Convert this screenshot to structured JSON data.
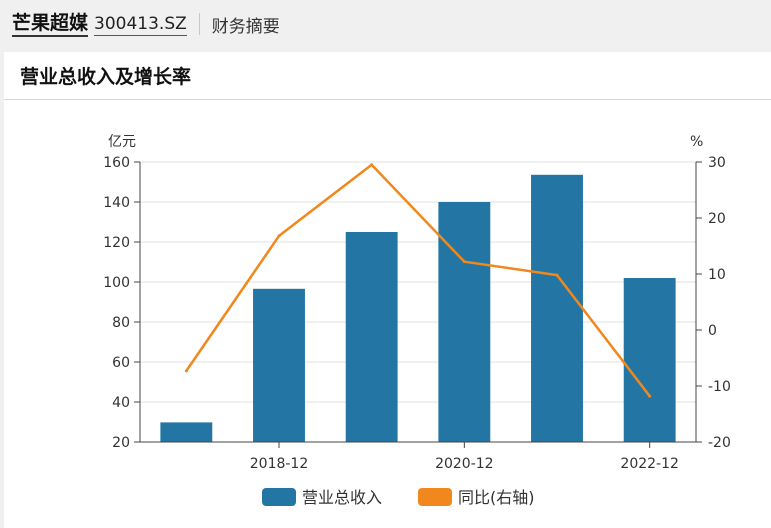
{
  "header": {
    "company": "芒果超媒",
    "code": "300413.SZ",
    "section": "财务摘要"
  },
  "card": {
    "title": "营业总收入及增长率"
  },
  "colors": {
    "bar": "#2376a4",
    "line": "#f0881d",
    "grid": "#e2e2e2",
    "axis": "#444444"
  },
  "chart_data": {
    "type": "bar",
    "categories": [
      "",
      "2018-12",
      "",
      "2020-12",
      "",
      "2022-12"
    ],
    "series": [
      {
        "name": "营业总收入",
        "type": "bar",
        "axis": "left",
        "values": [
          29.8,
          96.6,
          125.0,
          140.0,
          153.6,
          102.0
        ]
      },
      {
        "name": "同比(右轴)",
        "type": "line",
        "axis": "right",
        "values": [
          -7.3,
          16.8,
          29.5,
          12.2,
          9.8,
          -11.8
        ]
      }
    ],
    "y_left": {
      "unit": "亿元",
      "min": 20,
      "max": 160,
      "ticks": [
        20,
        40,
        60,
        80,
        100,
        120,
        140,
        160
      ]
    },
    "y_right": {
      "unit": "%",
      "min": -20,
      "max": 30,
      "ticks": [
        -20,
        -10,
        0,
        10,
        20,
        30
      ]
    },
    "grid": true,
    "legend": "bottom-center"
  }
}
